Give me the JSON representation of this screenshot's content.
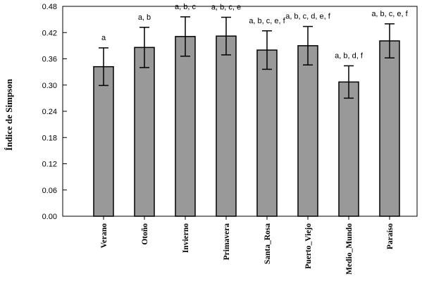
{
  "chart_data": {
    "type": "bar",
    "title": "",
    "xlabel": "",
    "ylabel": "Índice de Simpson",
    "ylim": [
      0,
      0.48
    ],
    "yticks": [
      "0.00",
      "0.06",
      "0.12",
      "0.18",
      "0.24",
      "0.30",
      "0.36",
      "0.42",
      "0.48"
    ],
    "categories": [
      "Verano",
      "Otoño",
      "Invierno",
      "Primavera",
      "Santa_Rosa",
      "Puerto_Viejo",
      "Medio_Mundo",
      "Paraíso"
    ],
    "values": [
      0.342,
      0.386,
      0.411,
      0.412,
      0.38,
      0.39,
      0.307,
      0.401
    ],
    "error": [
      0.043,
      0.046,
      0.045,
      0.043,
      0.044,
      0.044,
      0.037,
      0.039
    ],
    "significance_labels": [
      "a",
      "a, b",
      "a, b, c",
      "a, b, c, e",
      "a, b, c, e, f",
      "a, b, c, d, e, f",
      "a, b, d, f",
      "a, b, c, e, f"
    ],
    "bar_color": "#999999",
    "grid": false
  }
}
